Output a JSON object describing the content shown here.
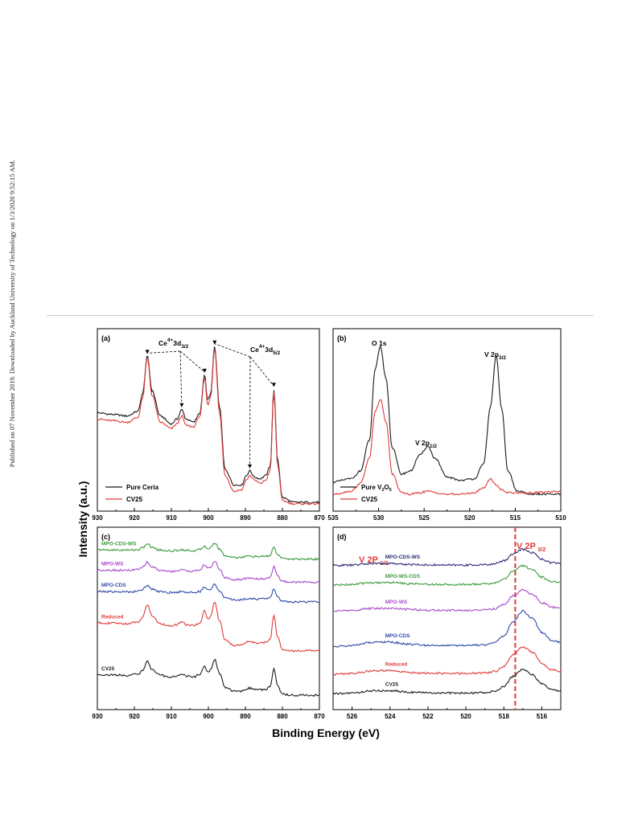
{
  "watermark": "Published on 07 November 2019. Downloaded by Auckland University of Technology on 1/3/2020 9:52:15 AM.",
  "figure": {
    "ylabel": "Intensity (a.u.)",
    "xlabel": "Binding Energy (eV)"
  },
  "chart_data": [
    {
      "id": "a",
      "panel_label": "(a)",
      "type": "line",
      "xlim": [
        930,
        870
      ],
      "xticks": [
        930,
        920,
        910,
        900,
        890,
        880,
        870
      ],
      "annotations": [
        "Ce4+3d3/2",
        "Ce4+3d5/2"
      ],
      "annotation_peaks": {
        "3d3/2": [
          916.5,
          907.2,
          901.0
        ],
        "3d5/2": [
          898.3,
          888.8,
          882.3
        ]
      },
      "series": [
        {
          "name": "Pure Ceria",
          "color": "#1a1a1a",
          "x": [
            930,
            926,
            922,
            919,
            917.8,
            916.5,
            915.2,
            913,
            910,
            908.5,
            907.2,
            906,
            904,
            902.3,
            901,
            900.2,
            899.4,
            898.3,
            897,
            895.5,
            893,
            891,
            889.8,
            888.8,
            887.5,
            886,
            884.5,
            883.3,
            882.3,
            881.3,
            880,
            877,
            874,
            870
          ],
          "y": [
            0.58,
            0.57,
            0.56,
            0.59,
            0.7,
            0.94,
            0.72,
            0.56,
            0.51,
            0.54,
            0.6,
            0.54,
            0.52,
            0.58,
            0.82,
            0.66,
            0.7,
            1.0,
            0.62,
            0.22,
            0.12,
            0.12,
            0.18,
            0.21,
            0.17,
            0.16,
            0.18,
            0.24,
            0.73,
            0.28,
            0.04,
            0.01,
            0.01,
            0.01
          ]
        },
        {
          "name": "CV25",
          "color": "#e03a3a",
          "x": [
            930,
            926,
            922,
            919,
            917.8,
            916.5,
            915.2,
            913,
            910,
            908.5,
            907.2,
            906,
            904,
            902.3,
            901,
            900.2,
            899.4,
            898.3,
            897,
            895.5,
            893,
            891,
            889.8,
            888.8,
            887.5,
            886,
            884.5,
            883.3,
            882.3,
            881.3,
            880,
            877,
            874,
            870
          ],
          "y": [
            0.54,
            0.53,
            0.52,
            0.55,
            0.67,
            0.93,
            0.69,
            0.52,
            0.48,
            0.51,
            0.56,
            0.5,
            0.49,
            0.56,
            0.8,
            0.63,
            0.68,
            0.99,
            0.58,
            0.18,
            0.08,
            0.09,
            0.15,
            0.18,
            0.15,
            0.13,
            0.15,
            0.21,
            0.71,
            0.25,
            0.02,
            0.0,
            0.0,
            0.0
          ]
        }
      ]
    },
    {
      "id": "b",
      "panel_label": "(b)",
      "type": "line",
      "xlim": [
        535,
        510
      ],
      "xticks": [
        535,
        530,
        525,
        520,
        515,
        510
      ],
      "annotations": [
        "O 1s",
        "V 2p1/2",
        "V 2p3/2"
      ],
      "series": [
        {
          "name": "Pure V2O5",
          "color": "#1a1a1a",
          "x": [
            535,
            533,
            532,
            531,
            530.4,
            529.8,
            529.2,
            528.5,
            527.5,
            526.5,
            525.5,
            524.6,
            523.8,
            522.5,
            521,
            519.5,
            518.5,
            517.7,
            517.1,
            516.5,
            515.8,
            514.8,
            513,
            510
          ],
          "y": [
            0.13,
            0.15,
            0.2,
            0.4,
            0.85,
            1.0,
            0.8,
            0.35,
            0.18,
            0.2,
            0.3,
            0.36,
            0.28,
            0.16,
            0.14,
            0.15,
            0.24,
            0.62,
            0.95,
            0.6,
            0.2,
            0.07,
            0.05,
            0.05
          ]
        },
        {
          "name": "CV25",
          "color": "#e03a3a",
          "x": [
            535,
            533,
            532,
            531,
            530.4,
            529.8,
            529.2,
            528.5,
            527.5,
            526.5,
            525.5,
            524.6,
            523.8,
            522.5,
            521,
            519.5,
            518.5,
            517.7,
            517.1,
            516.5,
            515.8,
            514.8,
            513,
            510
          ],
          "y": [
            0.05,
            0.07,
            0.12,
            0.28,
            0.58,
            0.66,
            0.52,
            0.18,
            0.06,
            0.05,
            0.06,
            0.07,
            0.06,
            0.05,
            0.05,
            0.06,
            0.09,
            0.15,
            0.11,
            0.08,
            0.06,
            0.06,
            0.06,
            0.07
          ]
        }
      ]
    },
    {
      "id": "c",
      "panel_label": "(c)",
      "type": "line",
      "xlim": [
        930,
        870
      ],
      "xticks": [
        930,
        920,
        910,
        900,
        890,
        880,
        870
      ],
      "x": [
        930,
        926,
        922,
        919,
        917.8,
        916.5,
        915.2,
        913,
        910,
        908.5,
        907.2,
        906,
        904,
        902.3,
        901,
        900.2,
        899.4,
        898.3,
        897,
        895.5,
        893,
        891,
        889.8,
        888.8,
        887.5,
        886,
        884.5,
        883.3,
        882.3,
        881.3,
        880,
        877,
        874,
        870
      ],
      "series": [
        {
          "name": "MPO-CDS-WS",
          "color": "#3a9a3a",
          "offset": 0.86,
          "scale": 0.1,
          "y": [
            0.58,
            0.57,
            0.56,
            0.59,
            0.7,
            0.94,
            0.72,
            0.56,
            0.51,
            0.54,
            0.6,
            0.54,
            0.52,
            0.58,
            0.82,
            0.66,
            0.7,
            1.0,
            0.62,
            0.22,
            0.12,
            0.12,
            0.18,
            0.21,
            0.17,
            0.16,
            0.18,
            0.24,
            0.73,
            0.28,
            0.04,
            0.01,
            0.01,
            0.01
          ]
        },
        {
          "name": "MPO-WS",
          "color": "#a64ac9",
          "offset": 0.72,
          "scale": 0.13,
          "y": [
            0.58,
            0.57,
            0.56,
            0.59,
            0.7,
            0.94,
            0.72,
            0.56,
            0.51,
            0.54,
            0.6,
            0.54,
            0.52,
            0.58,
            0.82,
            0.66,
            0.7,
            1.0,
            0.62,
            0.22,
            0.12,
            0.12,
            0.18,
            0.21,
            0.17,
            0.16,
            0.18,
            0.24,
            0.73,
            0.28,
            0.04,
            0.01,
            0.01,
            0.01
          ]
        },
        {
          "name": "MPO-CDS",
          "color": "#2e4aa8",
          "offset": 0.6,
          "scale": 0.11,
          "y": [
            0.58,
            0.57,
            0.56,
            0.59,
            0.7,
            0.94,
            0.72,
            0.56,
            0.51,
            0.54,
            0.6,
            0.54,
            0.52,
            0.58,
            0.82,
            0.66,
            0.7,
            1.0,
            0.62,
            0.22,
            0.12,
            0.12,
            0.18,
            0.21,
            0.17,
            0.16,
            0.18,
            0.24,
            0.73,
            0.28,
            0.04,
            0.01,
            0.01,
            0.01
          ]
        },
        {
          "name": "Reduced",
          "color": "#e03a3a",
          "offset": 0.3,
          "scale": 0.3,
          "y": [
            0.58,
            0.57,
            0.56,
            0.59,
            0.7,
            0.94,
            0.72,
            0.56,
            0.51,
            0.54,
            0.6,
            0.54,
            0.52,
            0.58,
            0.82,
            0.66,
            0.7,
            1.0,
            0.62,
            0.22,
            0.12,
            0.12,
            0.18,
            0.21,
            0.17,
            0.16,
            0.18,
            0.24,
            0.73,
            0.28,
            0.04,
            0.01,
            0.01,
            0.01
          ]
        },
        {
          "name": "CV25",
          "color": "#1a1a1a",
          "offset": 0.03,
          "scale": 0.22,
          "y": [
            0.58,
            0.57,
            0.56,
            0.59,
            0.7,
            0.94,
            0.72,
            0.56,
            0.51,
            0.54,
            0.6,
            0.54,
            0.52,
            0.58,
            0.82,
            0.66,
            0.7,
            1.0,
            0.62,
            0.22,
            0.12,
            0.12,
            0.18,
            0.21,
            0.17,
            0.16,
            0.18,
            0.24,
            0.73,
            0.28,
            0.04,
            0.01,
            0.01,
            0.01
          ]
        }
      ]
    },
    {
      "id": "d",
      "panel_label": "(d)",
      "type": "line",
      "xlim": [
        527,
        515
      ],
      "xticks": [
        526,
        524,
        522,
        520,
        518,
        516
      ],
      "annotations": [
        "V 2P1/2",
        "V 2P3/2"
      ],
      "reference_line_x": 517.4,
      "x": [
        527,
        526,
        525,
        524,
        523,
        522,
        521,
        520,
        519,
        518.5,
        518,
        517.5,
        517,
        516.5,
        516,
        515.5,
        515
      ],
      "series": [
        {
          "name": "MPO-CDS-WS",
          "color": "#2a2a78",
          "offset": 0.82,
          "scale": 0.1,
          "y": [
            0.0,
            0.03,
            0.12,
            0.13,
            0.07,
            0.04,
            0.03,
            0.03,
            0.05,
            0.1,
            0.3,
            0.72,
            1.0,
            0.8,
            0.4,
            0.18,
            0.12
          ]
        },
        {
          "name": "MPO-WS-CDS",
          "color": "#3a9a3a",
          "offset": 0.7,
          "scale": 0.12,
          "y": [
            0.0,
            0.03,
            0.12,
            0.13,
            0.07,
            0.04,
            0.03,
            0.03,
            0.05,
            0.1,
            0.3,
            0.72,
            1.0,
            0.8,
            0.4,
            0.18,
            0.12
          ]
        },
        {
          "name": "MPO-WS",
          "color": "#a64ac9",
          "offset": 0.54,
          "scale": 0.13,
          "y": [
            0.0,
            0.03,
            0.12,
            0.13,
            0.07,
            0.04,
            0.03,
            0.03,
            0.05,
            0.1,
            0.3,
            0.72,
            1.0,
            0.8,
            0.4,
            0.18,
            0.12
          ]
        },
        {
          "name": "MPO-CDS",
          "color": "#2e4aa8",
          "offset": 0.32,
          "scale": 0.22,
          "y": [
            0.0,
            0.03,
            0.12,
            0.13,
            0.07,
            0.04,
            0.03,
            0.03,
            0.05,
            0.1,
            0.3,
            0.72,
            1.0,
            0.8,
            0.4,
            0.18,
            0.12
          ]
        },
        {
          "name": "Reduced",
          "color": "#e03a3a",
          "offset": 0.15,
          "scale": 0.17,
          "y": [
            0.0,
            0.03,
            0.12,
            0.13,
            0.07,
            0.04,
            0.03,
            0.03,
            0.05,
            0.1,
            0.3,
            0.72,
            1.0,
            0.8,
            0.4,
            0.18,
            0.12
          ]
        },
        {
          "name": "CV25",
          "color": "#1a1a1a",
          "offset": 0.03,
          "scale": 0.15,
          "y": [
            0.0,
            0.03,
            0.12,
            0.13,
            0.07,
            0.04,
            0.03,
            0.03,
            0.05,
            0.1,
            0.3,
            0.72,
            1.0,
            0.8,
            0.4,
            0.18,
            0.12
          ]
        }
      ]
    }
  ]
}
